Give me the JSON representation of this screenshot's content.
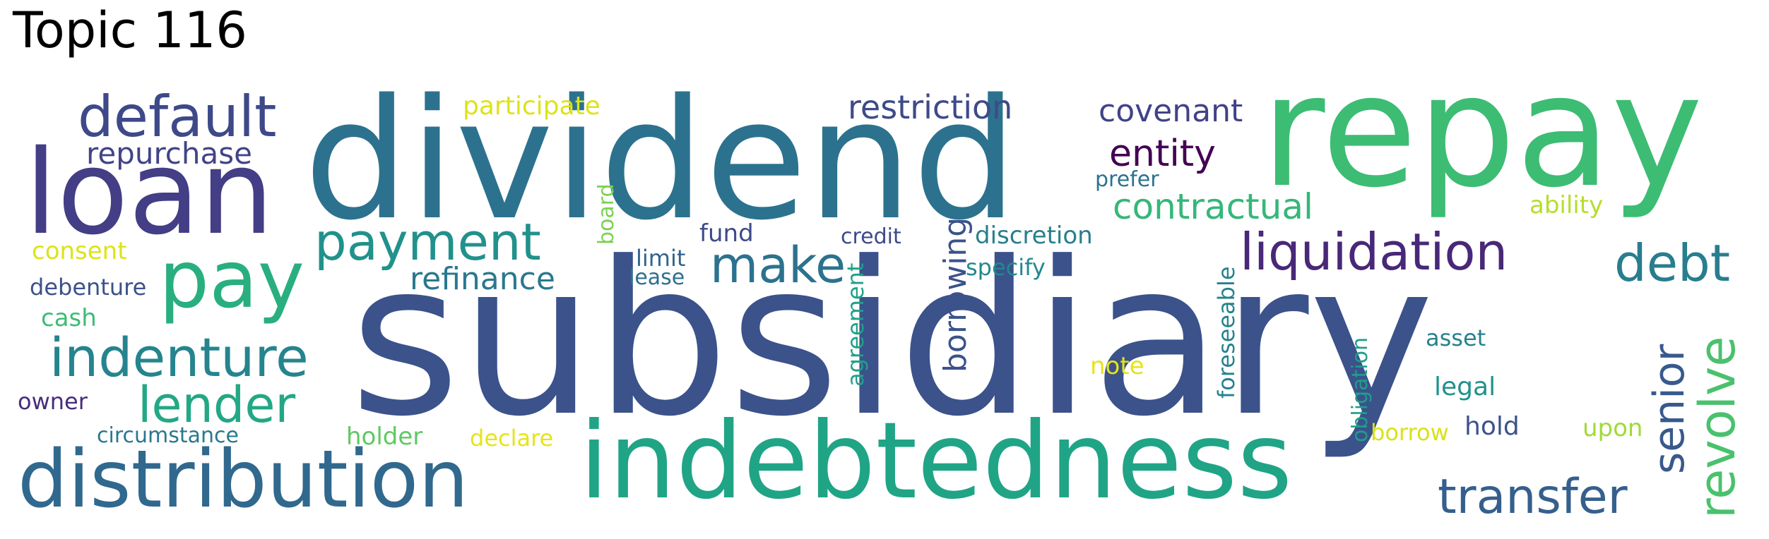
{
  "title": "Topic 116",
  "words": [
    {
      "text": "subsidiary",
      "color": "#3b528b",
      "vertical": false
    },
    {
      "text": "dividend",
      "color": "#2c728e",
      "vertical": false
    },
    {
      "text": "repay",
      "color": "#3dbc74",
      "vertical": false
    },
    {
      "text": "indebtedness",
      "color": "#20a486",
      "vertical": false
    },
    {
      "text": "loan",
      "color": "#433e85",
      "vertical": false
    },
    {
      "text": "distribution",
      "color": "#31688e",
      "vertical": false
    },
    {
      "text": "pay",
      "color": "#29af7f",
      "vertical": false
    },
    {
      "text": "default",
      "color": "#3e4989",
      "vertical": false
    },
    {
      "text": "payment",
      "color": "#21918c",
      "vertical": false
    },
    {
      "text": "indenture",
      "color": "#25848e",
      "vertical": false
    },
    {
      "text": "lender",
      "color": "#22a884",
      "vertical": false
    },
    {
      "text": "liquidation",
      "color": "#482878",
      "vertical": false
    },
    {
      "text": "transfer",
      "color": "#355f8d",
      "vertical": false
    },
    {
      "text": "debt",
      "color": "#287d8e",
      "vertical": false
    },
    {
      "text": "make",
      "color": "#2c728e",
      "vertical": false
    },
    {
      "text": "contractual",
      "color": "#35b779",
      "vertical": false
    },
    {
      "text": "entity",
      "color": "#440154",
      "vertical": false
    },
    {
      "text": "restriction",
      "color": "#3e4a89",
      "vertical": false
    },
    {
      "text": "covenant",
      "color": "#404387",
      "vertical": false
    },
    {
      "text": "repurchase",
      "color": "#414487",
      "vertical": false
    },
    {
      "text": "refinance",
      "color": "#2a788e",
      "vertical": false
    },
    {
      "text": "participate",
      "color": "#dde318",
      "vertical": false
    },
    {
      "text": "revolve",
      "color": "#4ac16d",
      "vertical": true
    },
    {
      "text": "senior",
      "color": "#38598c",
      "vertical": true
    },
    {
      "text": "borrowing",
      "color": "#3b528b",
      "vertical": true
    },
    {
      "text": "agreement",
      "color": "#1fa187",
      "vertical": true
    },
    {
      "text": "board",
      "color": "#7ad151",
      "vertical": true
    },
    {
      "text": "foreseeable",
      "color": "#26828e",
      "vertical": true
    },
    {
      "text": "obligation",
      "color": "#1f9e89",
      "vertical": true
    },
    {
      "text": "discretion",
      "color": "#277f8e",
      "vertical": false
    },
    {
      "text": "specify",
      "color": "#23888e",
      "vertical": false
    },
    {
      "text": "credit",
      "color": "#3e4989",
      "vertical": false
    },
    {
      "text": "fund",
      "color": "#3e4a89",
      "vertical": false
    },
    {
      "text": "limit",
      "color": "#33638d",
      "vertical": false
    },
    {
      "text": "lease",
      "color": "#2d708e",
      "vertical": false
    },
    {
      "text": "prefer",
      "color": "#2c728e",
      "vertical": false
    },
    {
      "text": "ability",
      "color": "#b5de2b",
      "vertical": false
    },
    {
      "text": "consent",
      "color": "#dde318",
      "vertical": false
    },
    {
      "text": "debenture",
      "color": "#3b528b",
      "vertical": false
    },
    {
      "text": "cash",
      "color": "#3dbc74",
      "vertical": false
    },
    {
      "text": "owner",
      "color": "#472d7b",
      "vertical": false
    },
    {
      "text": "circumstance",
      "color": "#2a788e",
      "vertical": false
    },
    {
      "text": "holder",
      "color": "#5ec962",
      "vertical": false
    },
    {
      "text": "declare",
      "color": "#e7e419",
      "vertical": false
    },
    {
      "text": "note",
      "color": "#e5e419",
      "vertical": false
    },
    {
      "text": "asset",
      "color": "#26828e",
      "vertical": false
    },
    {
      "text": "legal",
      "color": "#21918c",
      "vertical": false
    },
    {
      "text": "hold",
      "color": "#3b528b",
      "vertical": false
    },
    {
      "text": "borrow",
      "color": "#d8e219",
      "vertical": false
    },
    {
      "text": "upon",
      "color": "#a0da39",
      "vertical": false
    }
  ]
}
